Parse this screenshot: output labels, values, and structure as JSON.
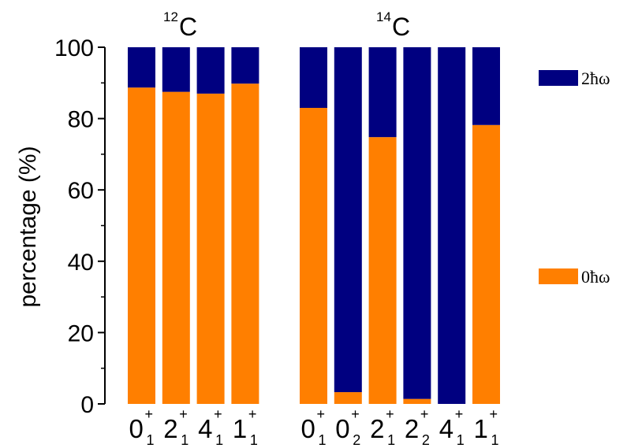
{
  "chart_data": {
    "type": "bar",
    "stacked": true,
    "ylabel": "percentage (%)",
    "ylim": [
      0,
      100
    ],
    "yticks": [
      "0",
      "20",
      "40",
      "60",
      "80",
      "100"
    ],
    "colors": {
      "zero": "#ff7f00",
      "two": "#000080"
    },
    "legend": [
      {
        "label": "2ħω",
        "color": "#000080"
      },
      {
        "label": "0ħω",
        "color": "#ff7f00"
      }
    ],
    "panels": [
      {
        "title_sup": "12",
        "title": "C",
        "categories": [
          {
            "main": "0",
            "sup": "+",
            "sub": "1"
          },
          {
            "main": "2",
            "sup": "+",
            "sub": "1"
          },
          {
            "main": "4",
            "sup": "+",
            "sub": "1"
          },
          {
            "main": "1",
            "sup": "+",
            "sub": "1"
          }
        ],
        "series": [
          {
            "name": "0ħω",
            "values": [
              88.7,
              87.5,
              87.0,
              89.8
            ]
          },
          {
            "name": "2ħω",
            "values": [
              11.3,
              12.5,
              13.0,
              10.2
            ]
          }
        ]
      },
      {
        "title_sup": "14",
        "title": "C",
        "categories": [
          {
            "main": "0",
            "sup": "+",
            "sub": "1"
          },
          {
            "main": "0",
            "sup": "+",
            "sub": "2"
          },
          {
            "main": "2",
            "sup": "+",
            "sub": "1"
          },
          {
            "main": "2",
            "sup": "+",
            "sub": "2"
          },
          {
            "main": "4",
            "sup": "+",
            "sub": "1"
          },
          {
            "main": "1",
            "sup": "+",
            "sub": "1"
          }
        ],
        "series": [
          {
            "name": "0ħω",
            "values": [
              83.0,
              3.3,
              74.8,
              1.4,
              0.0,
              78.2
            ]
          },
          {
            "name": "2ħω",
            "values": [
              17.0,
              96.7,
              25.2,
              98.6,
              100.0,
              21.8
            ]
          }
        ]
      }
    ]
  }
}
